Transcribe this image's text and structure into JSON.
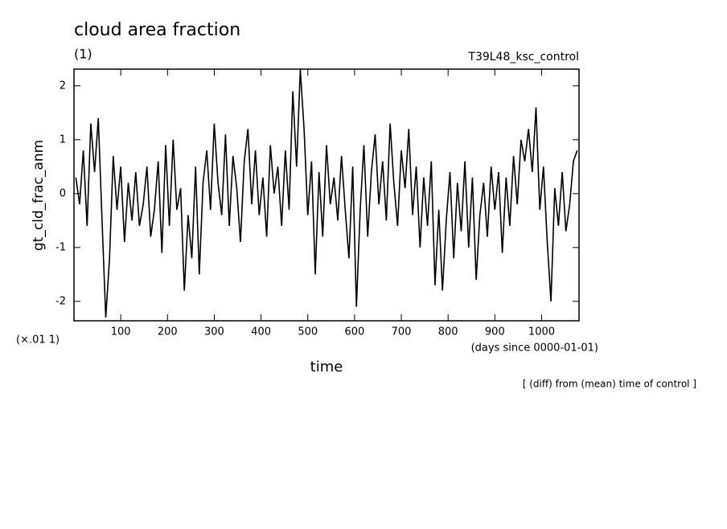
{
  "chart_data": {
    "type": "line",
    "title": "cloud area fraction",
    "subtitle": "(1)",
    "experiment": "T39L48_ksc_control",
    "y_label": "gt_cld_frac_anm",
    "y_unit": "(×.01 1)",
    "x_label": "time",
    "x_unit": "(days since 0000-01-01)",
    "note": "[ (diff) from (mean) time of control ]",
    "color": "#000000",
    "xlim": [
      0,
      1080
    ],
    "ylim": [
      -2.36,
      2.31
    ],
    "xticks": [
      100,
      200,
      300,
      400,
      500,
      600,
      700,
      800,
      900,
      1000
    ],
    "yticks": [
      -2,
      -1,
      0,
      1,
      2
    ],
    "x": [
      4,
      12,
      20,
      28,
      36,
      44,
      52,
      60,
      68,
      76,
      84,
      92,
      100,
      108,
      116,
      124,
      132,
      140,
      148,
      156,
      164,
      172,
      180,
      188,
      196,
      204,
      212,
      220,
      228,
      236,
      244,
      252,
      260,
      268,
      276,
      284,
      292,
      300,
      308,
      316,
      324,
      332,
      340,
      348,
      356,
      364,
      372,
      380,
      388,
      396,
      404,
      412,
      420,
      428,
      436,
      444,
      452,
      460,
      468,
      476,
      484,
      492,
      500,
      508,
      516,
      524,
      532,
      540,
      548,
      556,
      564,
      572,
      580,
      588,
      596,
      604,
      612,
      620,
      628,
      636,
      644,
      652,
      660,
      668,
      676,
      684,
      692,
      700,
      708,
      716,
      724,
      732,
      740,
      748,
      756,
      764,
      772,
      780,
      788,
      796,
      804,
      812,
      820,
      828,
      836,
      844,
      852,
      860,
      868,
      876,
      884,
      892,
      900,
      908,
      916,
      924,
      932,
      940,
      948,
      956,
      964,
      972,
      980,
      988,
      996,
      1004,
      1012,
      1020,
      1028,
      1036,
      1044,
      1052,
      1060,
      1068,
      1076
    ],
    "values": [
      0.3,
      -0.2,
      0.8,
      -0.6,
      1.3,
      0.4,
      1.4,
      -0.5,
      -2.3,
      -1.2,
      0.7,
      -0.3,
      0.5,
      -0.9,
      0.2,
      -0.5,
      0.4,
      -0.6,
      -0.2,
      0.5,
      -0.8,
      -0.3,
      0.6,
      -1.1,
      0.9,
      -0.6,
      1.0,
      -0.3,
      0.1,
      -1.8,
      -0.4,
      -1.2,
      0.5,
      -1.5,
      0.2,
      0.8,
      -0.3,
      1.3,
      0.2,
      -0.4,
      1.1,
      -0.6,
      0.7,
      0.1,
      -0.9,
      0.6,
      1.2,
      -0.2,
      0.8,
      -0.4,
      0.3,
      -0.8,
      0.9,
      0.0,
      0.5,
      -0.6,
      0.8,
      -0.3,
      1.9,
      0.5,
      2.3,
      1.2,
      -0.4,
      0.6,
      -1.5,
      0.4,
      -0.8,
      0.9,
      -0.2,
      0.3,
      -0.5,
      0.7,
      -0.3,
      -1.2,
      0.5,
      -2.1,
      -0.3,
      0.9,
      -0.8,
      0.4,
      1.1,
      -0.2,
      0.6,
      -0.5,
      1.3,
      0.2,
      -0.6,
      0.8,
      0.1,
      1.2,
      -0.4,
      0.5,
      -1.0,
      0.3,
      -0.6,
      0.6,
      -1.7,
      -0.3,
      -1.8,
      -0.5,
      0.4,
      -1.2,
      0.2,
      -0.7,
      0.6,
      -1.0,
      0.3,
      -1.6,
      -0.4,
      0.2,
      -0.8,
      0.5,
      -0.3,
      0.4,
      -1.1,
      0.3,
      -0.6,
      0.7,
      -0.2,
      1.0,
      0.6,
      1.2,
      0.4,
      1.6,
      -0.3,
      0.5,
      -0.9,
      -2.0,
      0.1,
      -0.6,
      0.4,
      -0.7,
      -0.2,
      0.6,
      0.8
    ]
  }
}
